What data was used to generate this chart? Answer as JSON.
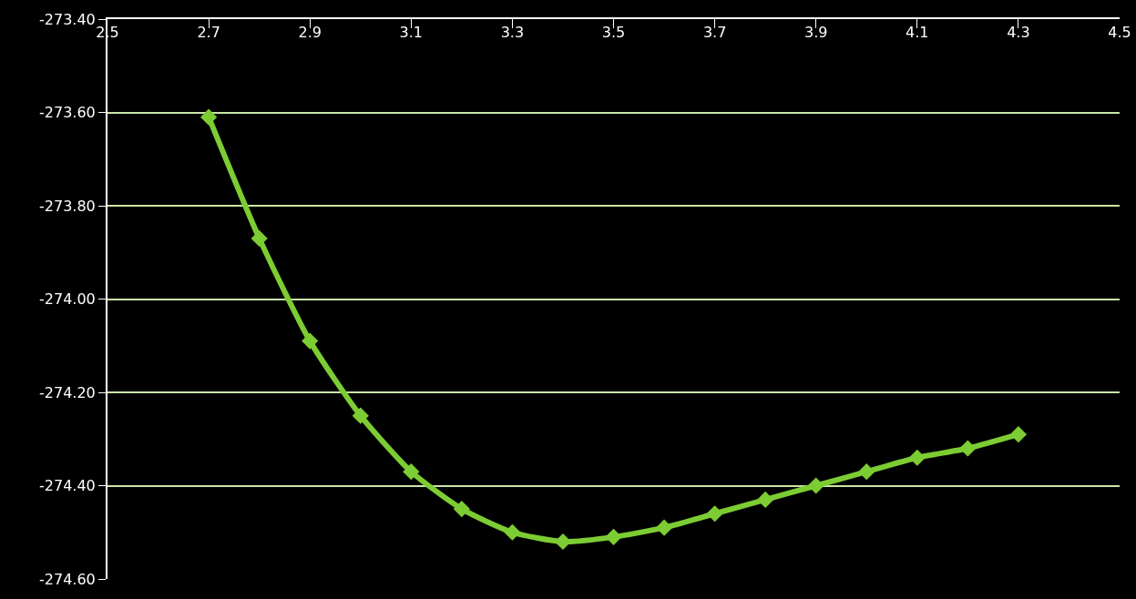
{
  "chart_data": {
    "type": "line",
    "x": [
      2.7,
      2.8,
      2.9,
      3.0,
      3.1,
      3.2,
      3.3,
      3.4,
      3.5,
      3.6,
      3.7,
      3.8,
      3.9,
      4.0,
      4.1,
      4.2,
      4.3
    ],
    "series": [
      {
        "color": "#7ccc33",
        "values": [
          -273.61,
          -273.87,
          -274.09,
          -274.25,
          -274.37,
          -274.45,
          -274.5,
          -274.52,
          -274.51,
          -274.49,
          -274.46,
          -274.43,
          -274.4,
          -274.37,
          -274.34,
          -274.32,
          -274.29
        ]
      }
    ],
    "xlim": [
      2.5,
      4.5
    ],
    "xticks": [
      2.5,
      2.7,
      2.9,
      3.1,
      3.3,
      3.5,
      3.7,
      3.9,
      4.1,
      4.3,
      4.5
    ],
    "ylim": [
      -274.6,
      -273.4
    ],
    "yticks": [
      {
        "value": -274.6,
        "label": "-274.60"
      },
      {
        "value": -274.4,
        "label": "-274.40"
      },
      {
        "value": -274.2,
        "label": "-274.20"
      },
      {
        "value": -274.0,
        "label": "-274.00"
      },
      {
        "value": -273.8,
        "label": "-273.80"
      },
      {
        "value": -273.6,
        "label": "-273.60"
      },
      {
        "value": -273.4,
        "label": "-273.40"
      }
    ],
    "grid": "y",
    "marker": "diamond",
    "line_style": "solid",
    "legend": false
  }
}
